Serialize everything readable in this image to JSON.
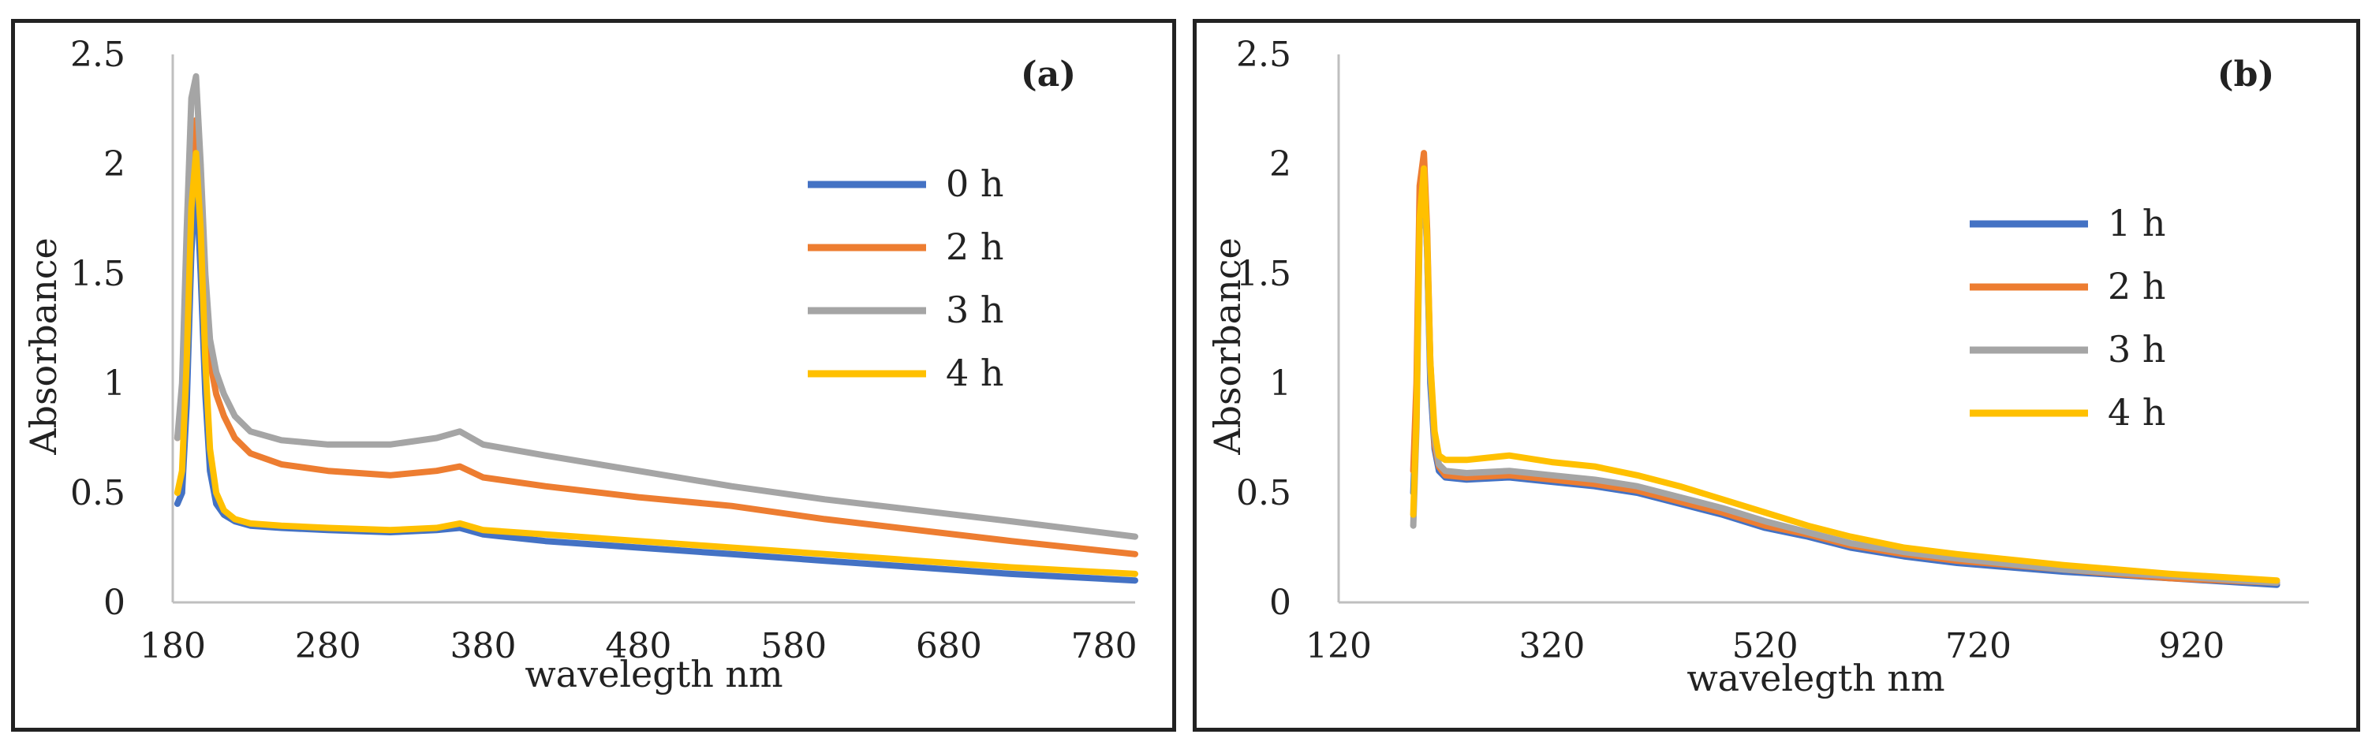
{
  "colors": {
    "axis": "#bfbfbf",
    "text": "#222222"
  },
  "chart_data": [
    {
      "panel_label": "(a)",
      "type": "line",
      "xlabel": "waveleg th nm",
      "ylabel": "Absorbance",
      "xlim": [
        180,
        800
      ],
      "ylim": [
        0,
        2.5
      ],
      "x_ticks": [
        180,
        280,
        380,
        480,
        580,
        680,
        780
      ],
      "y_ticks": [
        0,
        0.5,
        1,
        1.5,
        2,
        2.5
      ],
      "x_tick_labels": [
        "180",
        "280",
        "380",
        "480",
        "580",
        "680",
        "780"
      ],
      "y_tick_labels": [
        "0",
        "0.5",
        "1",
        "1.5",
        "2",
        "2.5"
      ],
      "grid": false,
      "legend_position": "right",
      "series": [
        {
          "name": "0 h",
          "color": "#4472c4",
          "x": [
            183,
            186,
            189,
            192,
            195,
            198,
            201,
            204,
            208,
            213,
            220,
            230,
            250,
            280,
            320,
            350,
            365,
            380,
            420,
            480,
            540,
            600,
            660,
            720,
            800
          ],
          "y": [
            0.45,
            0.5,
            0.9,
            1.6,
            1.95,
            1.5,
            0.95,
            0.6,
            0.45,
            0.4,
            0.37,
            0.35,
            0.34,
            0.33,
            0.32,
            0.33,
            0.34,
            0.31,
            0.28,
            0.25,
            0.22,
            0.19,
            0.16,
            0.13,
            0.1
          ]
        },
        {
          "name": "2 h",
          "color": "#ed7d31",
          "x": [
            183,
            186,
            189,
            192,
            195,
            198,
            201,
            204,
            208,
            213,
            220,
            230,
            250,
            280,
            320,
            350,
            365,
            380,
            420,
            480,
            540,
            600,
            660,
            720,
            800
          ],
          "y": [
            0.75,
            0.9,
            1.5,
            2.0,
            2.2,
            1.8,
            1.35,
            1.1,
            0.95,
            0.85,
            0.75,
            0.68,
            0.63,
            0.6,
            0.58,
            0.6,
            0.62,
            0.57,
            0.53,
            0.48,
            0.44,
            0.38,
            0.33,
            0.28,
            0.22
          ]
        },
        {
          "name": "3 h",
          "color": "#a5a5a5",
          "x": [
            183,
            186,
            189,
            192,
            195,
            198,
            201,
            204,
            208,
            213,
            220,
            230,
            250,
            280,
            320,
            350,
            365,
            380,
            420,
            480,
            540,
            600,
            660,
            720,
            800
          ],
          "y": [
            0.75,
            1.0,
            1.7,
            2.3,
            2.4,
            2.0,
            1.5,
            1.2,
            1.05,
            0.95,
            0.85,
            0.78,
            0.74,
            0.72,
            0.72,
            0.75,
            0.78,
            0.72,
            0.67,
            0.6,
            0.53,
            0.47,
            0.42,
            0.37,
            0.3
          ]
        },
        {
          "name": "4 h",
          "color": "#ffc000",
          "x": [
            183,
            186,
            189,
            192,
            195,
            198,
            201,
            204,
            208,
            213,
            220,
            230,
            250,
            280,
            320,
            350,
            365,
            380,
            420,
            480,
            540,
            600,
            660,
            720,
            800
          ],
          "y": [
            0.5,
            0.6,
            1.1,
            1.8,
            2.05,
            1.7,
            1.1,
            0.7,
            0.5,
            0.42,
            0.38,
            0.36,
            0.35,
            0.34,
            0.33,
            0.34,
            0.36,
            0.33,
            0.31,
            0.28,
            0.25,
            0.22,
            0.19,
            0.16,
            0.13
          ]
        }
      ]
    },
    {
      "panel_label": "(b)",
      "type": "line",
      "xlabel": "waveleg th nm",
      "ylabel": "Absorbance",
      "xlim": [
        120,
        1030
      ],
      "ylim": [
        0,
        2.5
      ],
      "x_ticks": [
        120,
        320,
        520,
        720,
        920
      ],
      "y_ticks": [
        0,
        0.5,
        1,
        1.5,
        2,
        2.5
      ],
      "x_tick_labels": [
        "120",
        "320",
        "520",
        "720",
        "920"
      ],
      "y_tick_labels": [
        "0",
        "0.5",
        "1",
        "1.5",
        "2",
        "2.5"
      ],
      "grid": false,
      "legend_position": "right",
      "series": [
        {
          "name": "1 h",
          "color": "#4472c4",
          "x": [
            190,
            193,
            196,
            200,
            203,
            206,
            210,
            214,
            220,
            240,
            280,
            320,
            360,
            400,
            440,
            480,
            520,
            560,
            600,
            650,
            700,
            800,
            900,
            1000
          ],
          "y": [
            0.5,
            0.9,
            1.8,
            2.0,
            1.6,
            1.0,
            0.7,
            0.6,
            0.57,
            0.56,
            0.57,
            0.55,
            0.53,
            0.5,
            0.45,
            0.4,
            0.34,
            0.3,
            0.25,
            0.21,
            0.18,
            0.14,
            0.11,
            0.08
          ]
        },
        {
          "name": "2 h",
          "color": "#ed7d31",
          "x": [
            190,
            193,
            196,
            200,
            203,
            206,
            210,
            214,
            220,
            240,
            280,
            320,
            360,
            400,
            440,
            480,
            520,
            560,
            600,
            650,
            700,
            800,
            900,
            1000
          ],
          "y": [
            0.6,
            1.0,
            1.9,
            2.05,
            1.7,
            1.1,
            0.72,
            0.62,
            0.58,
            0.57,
            0.58,
            0.56,
            0.54,
            0.51,
            0.46,
            0.41,
            0.35,
            0.31,
            0.26,
            0.22,
            0.19,
            0.15,
            0.11,
            0.09
          ]
        },
        {
          "name": "3 h",
          "color": "#a5a5a5",
          "x": [
            190,
            193,
            196,
            200,
            203,
            206,
            210,
            214,
            220,
            240,
            280,
            320,
            360,
            400,
            440,
            480,
            520,
            560,
            600,
            650,
            700,
            800,
            900,
            1000
          ],
          "y": [
            0.35,
            0.8,
            1.7,
            1.95,
            1.6,
            1.05,
            0.75,
            0.63,
            0.6,
            0.59,
            0.6,
            0.58,
            0.56,
            0.53,
            0.48,
            0.43,
            0.37,
            0.32,
            0.27,
            0.23,
            0.2,
            0.15,
            0.12,
            0.09
          ]
        },
        {
          "name": "4 h",
          "color": "#ffc000",
          "x": [
            190,
            193,
            196,
            200,
            203,
            206,
            210,
            214,
            220,
            240,
            280,
            320,
            360,
            400,
            440,
            480,
            520,
            560,
            600,
            650,
            700,
            800,
            900,
            1000
          ],
          "y": [
            0.4,
            0.85,
            1.75,
            1.98,
            1.65,
            1.1,
            0.78,
            0.67,
            0.65,
            0.65,
            0.67,
            0.64,
            0.62,
            0.58,
            0.53,
            0.47,
            0.41,
            0.35,
            0.3,
            0.25,
            0.22,
            0.17,
            0.13,
            0.1
          ]
        }
      ]
    }
  ]
}
